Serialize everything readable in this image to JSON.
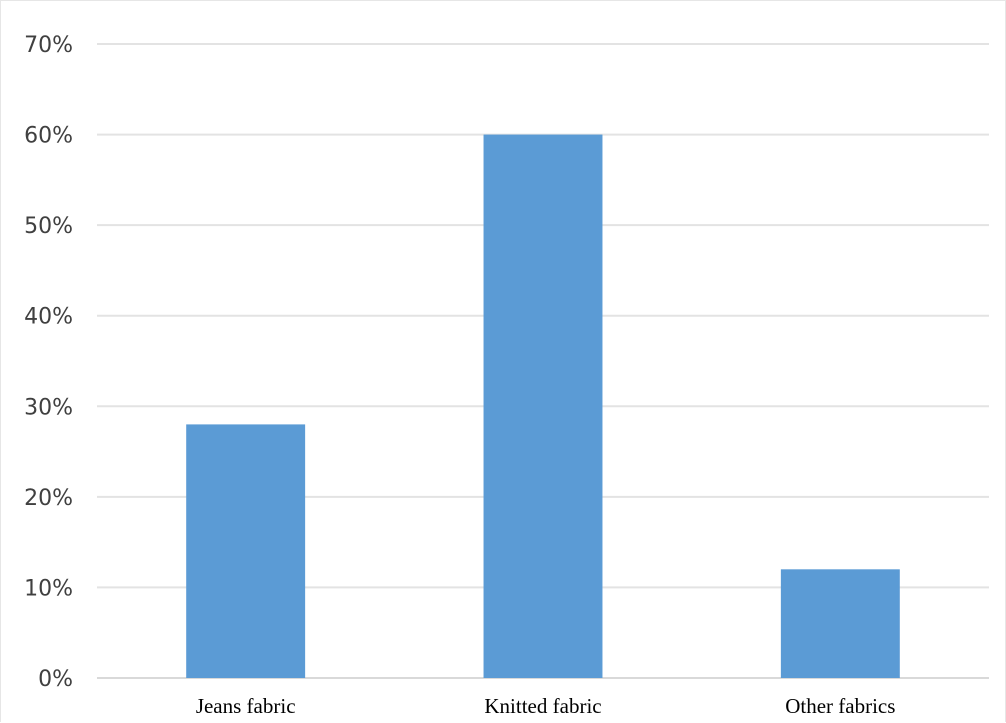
{
  "chart_data": {
    "type": "bar",
    "categories": [
      "Jeans fabric",
      "Knitted fabric",
      "Other fabrics"
    ],
    "values": [
      28,
      60,
      12
    ],
    "ylim": [
      0,
      70
    ],
    "yticks": [
      0,
      10,
      20,
      30,
      40,
      50,
      60,
      70
    ],
    "ytick_labels": [
      "0%",
      "10%",
      "20%",
      "30%",
      "40%",
      "50%",
      "60%",
      "70%"
    ],
    "title": "",
    "xlabel": "",
    "ylabel": "",
    "grid": true,
    "legend": "none",
    "bar_color": "#5b9bd5"
  }
}
